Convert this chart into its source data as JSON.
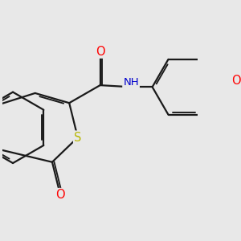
{
  "bg_color": "#e8e8e8",
  "bond_color": "#1a1a1a",
  "bond_width": 1.6,
  "dbo": 0.055,
  "atom_colors": {
    "S": "#b8b800",
    "O": "#ff0000",
    "N": "#0000cc",
    "C": "#1a1a1a"
  },
  "font_size": 9.5,
  "fig_size": [
    3.0,
    3.0
  ],
  "dpi": 100,
  "xlim": [
    -0.3,
    5.2
  ],
  "ylim": [
    -1.8,
    2.2
  ]
}
